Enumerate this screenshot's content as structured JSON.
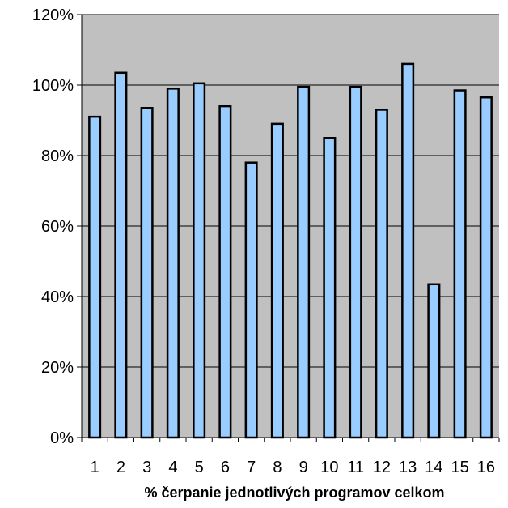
{
  "chart_data": {
    "type": "bar",
    "title": "",
    "xlabel": "% čerpanie jednotlivých programov celkom",
    "ylabel": "",
    "categories": [
      "1",
      "2",
      "3",
      "4",
      "5",
      "6",
      "7",
      "8",
      "9",
      "10",
      "11",
      "12",
      "13",
      "14",
      "15",
      "16"
    ],
    "series": [
      {
        "values": [
          0.91,
          1.035,
          0.935,
          0.99,
          1.005,
          0.94,
          0.78,
          0.89,
          0.995,
          0.85,
          0.995,
          0.93,
          1.06,
          0.435,
          0.985,
          0.965
        ]
      }
    ],
    "ylim": [
      0,
      1.2
    ],
    "yticks": [
      "0%",
      "20%",
      "40%",
      "60%",
      "80%",
      "100%",
      "120%"
    ],
    "grid": true,
    "legend": "none",
    "colors": {
      "plot_background": "#c0c0c0",
      "bar_fill": "#99ccff",
      "bar_stroke": "#000000",
      "gridline": "#000000"
    }
  }
}
